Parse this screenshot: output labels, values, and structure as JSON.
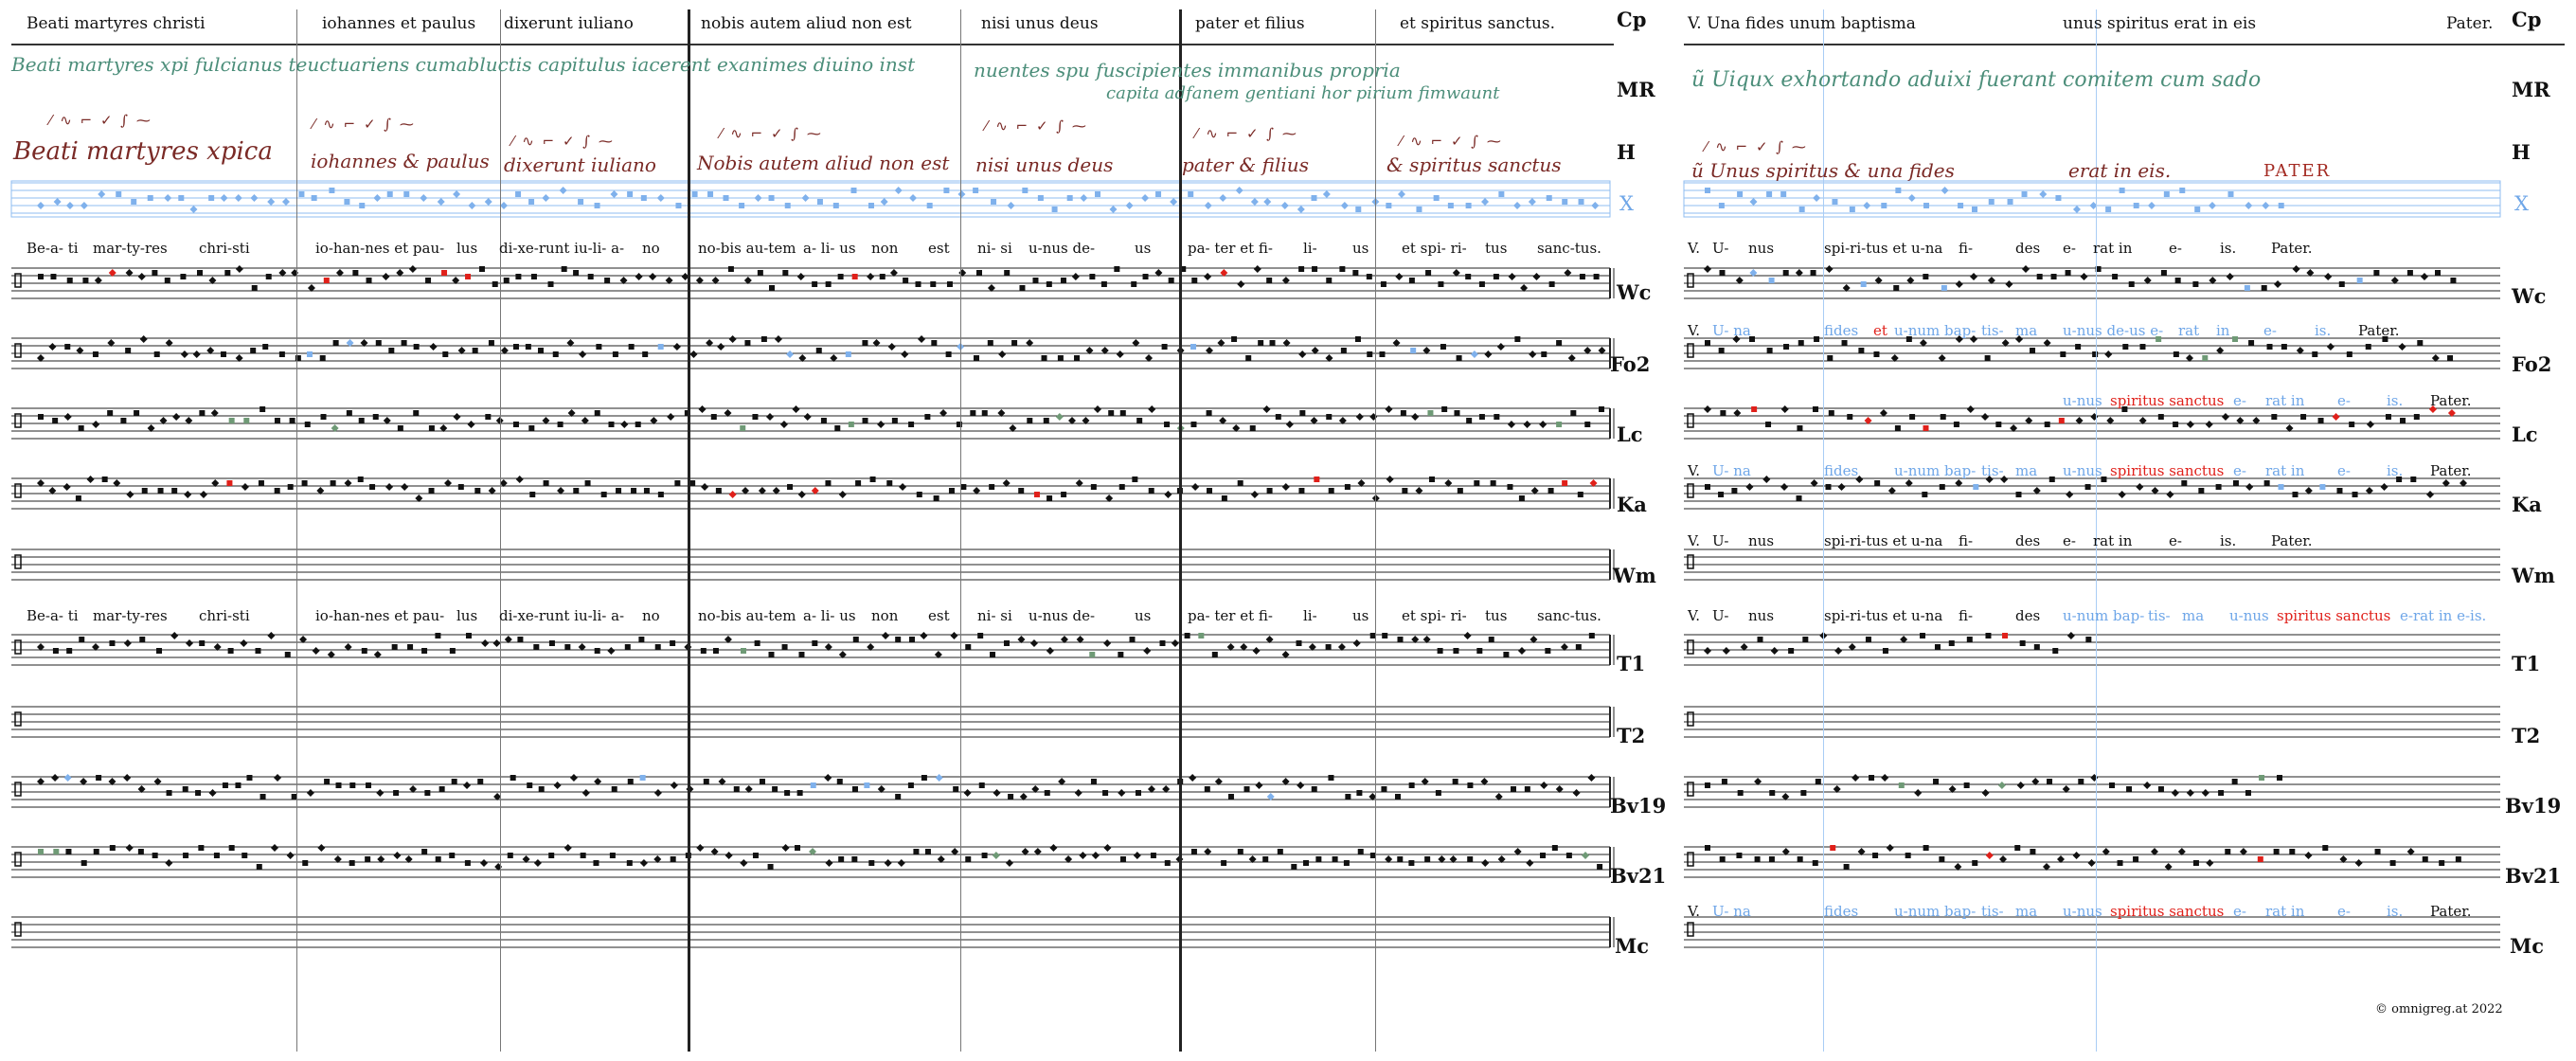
{
  "left_header": {
    "segments": [
      "Beati martyres christi",
      "iohannes et paulus",
      "dixerunt iuliano",
      "nobis autem aliud non est",
      "nisi unus deus",
      "pater et filius",
      "et spiritus sanctus."
    ],
    "label": "Cp"
  },
  "right_header": {
    "segments": [
      "V. Una fides unum baptisma",
      "unus spiritus erat in eis",
      "Pater."
    ],
    "label": "Cp"
  },
  "row_labels": {
    "mr": "MR",
    "h": "H",
    "x": "X",
    "wc": "Wc",
    "fo2": "Fo2",
    "lc": "Lc",
    "ka": "Ka",
    "wm": "Wm",
    "t1": "T1",
    "t2": "T2",
    "bv19": "Bv19",
    "bv21": "Bv21",
    "mc": "Mc"
  },
  "manuscript": {
    "mr_line1": "Beati martyres xpi fulcianus teuctuariens cumabluctis capitulus iacerent exanimes diuino inst",
    "mr_line1b": "nuentes spu fuscipientes immanibus propria",
    "mr_line2": "capita adfanem gentiani hor pirium fimwaunt",
    "mr_right": "ũ Uiqux exhortando aduixi fuerant comitem cum sado",
    "h_segments": [
      "Beati martyres xpica",
      "iohannes & paulus",
      "dixerunt iuliano",
      "Nobis autem aliud non est",
      "nisi unus deus",
      "pater & filius",
      "& spiritus sanctus"
    ],
    "h_right": [
      "ũ Unus spiritus & una fides",
      "erat in eis.",
      "PATER"
    ],
    "neume_marks": "⁄ ∿ ⌐ ✓ ∫ ⁓"
  },
  "lyrics": {
    "main": [
      "Be-a- ti",
      "mar-ty-res",
      "chri-sti",
      "io-han-nes et pau-",
      "lus",
      "di-xe-runt iu-li- a-",
      "no",
      "no-bis au-tem",
      "a- li- us",
      "non",
      "est",
      "ni- si",
      "u-nus de-",
      "us",
      "pa- ter et fi-",
      "li-",
      "us",
      "et spi- ri-",
      "tus",
      "sanc-tus."
    ],
    "verse_main": [
      "V.",
      "U-",
      "nus",
      "spi-ri-tus et",
      "u-na",
      "fi-",
      "des",
      "e-",
      "rat in",
      "e-",
      "is.",
      "Pater."
    ],
    "verse_fo2": [
      "V.",
      "U- na",
      "fides",
      "et",
      "u-num bap-",
      "tis-",
      "ma",
      "u-nus de-us e-",
      "rat",
      "in",
      "e-",
      "is.",
      "Pater."
    ],
    "verse_lc": [
      "u-nus",
      "spiritus sanctus",
      "e-",
      "rat in",
      "e-",
      "is.",
      "Pater."
    ],
    "verse_ka": [
      "V.",
      "U- na",
      "fides",
      "u-num bap-",
      "tis-",
      "ma",
      "u-nus",
      "spiritus sanctus",
      "e-",
      "rat in",
      "e-",
      "is.",
      "Pater."
    ],
    "verse_t1": [
      "V.",
      "U-",
      "nus",
      "spi-ri-tus et",
      "u-na",
      "fi-",
      "des",
      "u-num bap-",
      "tis-",
      "ma",
      "u-nus",
      "spiritus sanctus",
      "e-rat in e-is."
    ],
    "verse_mc": [
      "V.",
      "U- na",
      "fides",
      "u-num bap-",
      "tis-",
      "ma",
      "u-nus",
      "spiritus sanctus",
      "e-",
      "rat in",
      "e-",
      "is.",
      "Pater."
    ]
  },
  "colors": {
    "neume_black": "#111111",
    "neume_red": "#e0201a",
    "neume_blue": "#7fb1ec",
    "neume_green": "#6f9a76",
    "manu_green": "#4c8e7a",
    "manu_brown": "#7a2a26"
  },
  "footer": {
    "copyright": "© omnigreg.at 2022"
  }
}
